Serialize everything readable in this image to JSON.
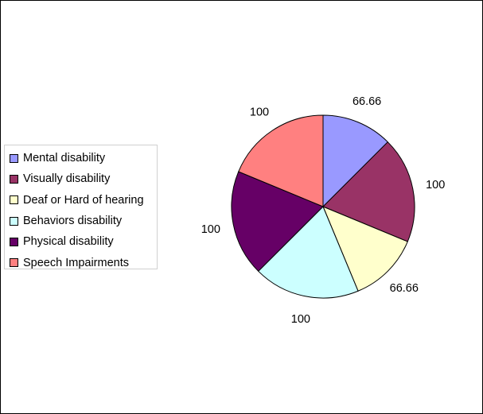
{
  "chart_data": {
    "type": "pie",
    "title": "",
    "legend_position": "left",
    "categories": [
      "Mental disability",
      "Visually disability",
      "Deaf or Hard of hearing",
      "Behaviors disability",
      "Physical disability",
      "Speech Impairments"
    ],
    "values": [
      66.66,
      100,
      66.66,
      100,
      100,
      100
    ],
    "data_labels": [
      "66.66",
      "100",
      "66.66",
      "100",
      "100",
      "100"
    ],
    "colors": [
      "#9999FF",
      "#993366",
      "#FFFFCC",
      "#CCFFFF",
      "#660066",
      "#FF8080"
    ]
  }
}
